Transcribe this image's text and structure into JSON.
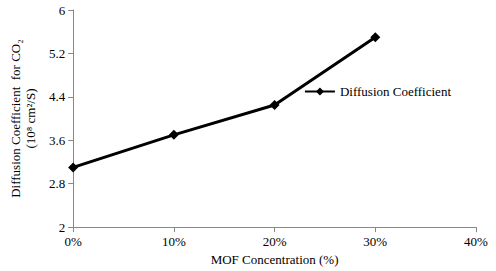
{
  "chart_data": {
    "type": "line",
    "x_label": "MOF Concentration (%)",
    "y_label": "Diffusion Coefficient  for CO₂\n(10⁸ cm²/S)",
    "x": [
      0,
      10,
      20,
      30
    ],
    "series": [
      {
        "name": "Diffusion Coefficient",
        "color": "#000000",
        "marker": "diamond",
        "values": [
          3.1,
          3.7,
          4.25,
          5.5
        ]
      }
    ],
    "xlim": [
      0,
      40
    ],
    "xticks": [
      {
        "value": 0,
        "label": "0%"
      },
      {
        "value": 10,
        "label": "10%"
      },
      {
        "value": 20,
        "label": "20%"
      },
      {
        "value": 30,
        "label": "30%"
      },
      {
        "value": 40,
        "label": "40%"
      }
    ],
    "ylim": [
      2,
      6
    ],
    "yticks": [
      2,
      2.8,
      3.6,
      4.4,
      5.2,
      6
    ],
    "grid": false,
    "legend": "upper right"
  }
}
